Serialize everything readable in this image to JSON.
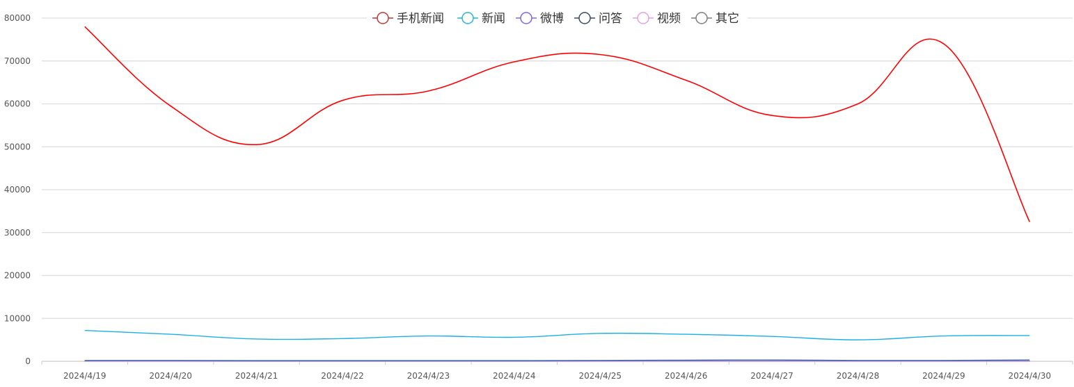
{
  "chart_data": {
    "type": "line",
    "title": "",
    "xlabel": "",
    "ylabel": "",
    "categories": [
      "2024/4/19",
      "2024/4/20",
      "2024/4/21",
      "2024/4/22",
      "2024/4/23",
      "2024/4/24",
      "2024/4/25",
      "2024/4/26",
      "2024/4/27",
      "2024/4/28",
      "2024/4/29",
      "2024/4/30"
    ],
    "ylim": [
      0,
      80000
    ],
    "yticks": [
      0,
      10000,
      20000,
      30000,
      40000,
      50000,
      60000,
      70000,
      80000
    ],
    "grid": true,
    "legend_position": "top",
    "smooth": true,
    "series": [
      {
        "name": "手机新闻",
        "color": "#ff0000",
        "legend_color": "#c23531",
        "values": [
          78000,
          59500,
          50500,
          60800,
          63000,
          69800,
          71500,
          65500,
          57300,
          60000,
          74000,
          32500
        ]
      },
      {
        "name": "新闻",
        "color": "#1ab0e6",
        "legend_color": "#27b4d8",
        "values": [
          7200,
          6300,
          5200,
          5300,
          5900,
          5600,
          6500,
          6300,
          5800,
          5000,
          5900,
          6000
        ]
      },
      {
        "name": "微博",
        "color": "#7b68ee",
        "legend_color": "#7b68ee",
        "values": [
          50,
          50,
          50,
          50,
          50,
          50,
          50,
          50,
          50,
          50,
          50,
          50
        ]
      },
      {
        "name": "问答",
        "color": "#3a4b63",
        "legend_color": "#3a4b63",
        "values": [
          20,
          20,
          20,
          20,
          20,
          20,
          20,
          20,
          20,
          20,
          20,
          20
        ]
      },
      {
        "name": "视频",
        "color": "#e69de6",
        "legend_color": "#e69de6",
        "values": [
          10,
          10,
          10,
          10,
          10,
          10,
          10,
          10,
          10,
          10,
          10,
          10
        ]
      },
      {
        "name": "其它",
        "color": "#1f5fa8",
        "legend_color": "#7d7d7d",
        "values": [
          200,
          200,
          150,
          150,
          150,
          150,
          200,
          250,
          300,
          200,
          200,
          300
        ]
      }
    ]
  }
}
